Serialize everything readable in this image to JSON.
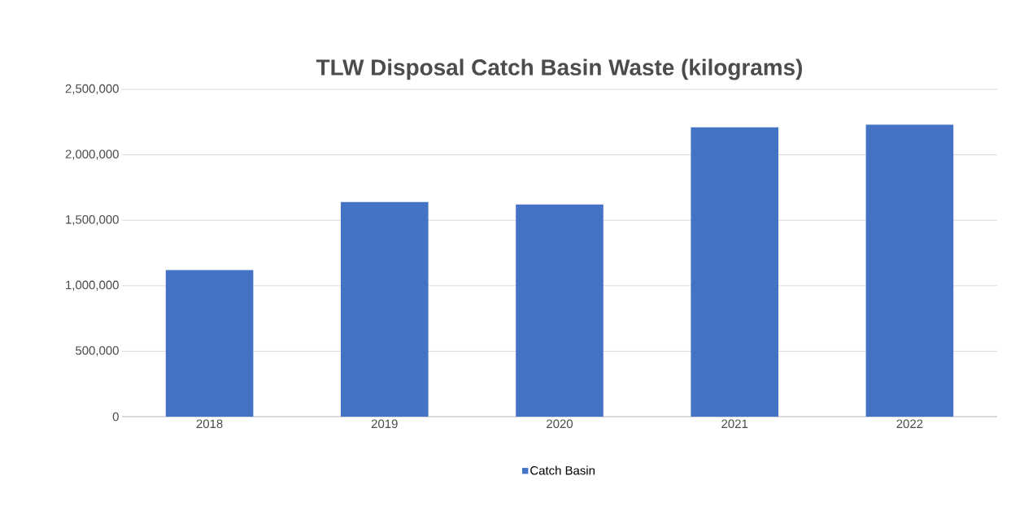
{
  "chart_data": {
    "type": "bar",
    "title": "TLW Disposal Catch Basin Waste (kilograms)",
    "categories": [
      "2018",
      "2019",
      "2020",
      "2021",
      "2022"
    ],
    "series": [
      {
        "name": "Catch Basin",
        "color": "#4472c4",
        "values": [
          1120000,
          1640000,
          1620000,
          2210000,
          2230000
        ]
      }
    ],
    "ylim": [
      0,
      2500000
    ],
    "yticks": [
      {
        "value": 0,
        "label": "0"
      },
      {
        "value": 500000,
        "label": "500,000"
      },
      {
        "value": 1000000,
        "label": "1,000,000"
      },
      {
        "value": 1500000,
        "label": "1,500,000"
      },
      {
        "value": 2000000,
        "label": "2,000,000"
      },
      {
        "value": 2500000,
        "label": "2,500,000"
      }
    ],
    "grid": "y",
    "legend": "bottom"
  }
}
